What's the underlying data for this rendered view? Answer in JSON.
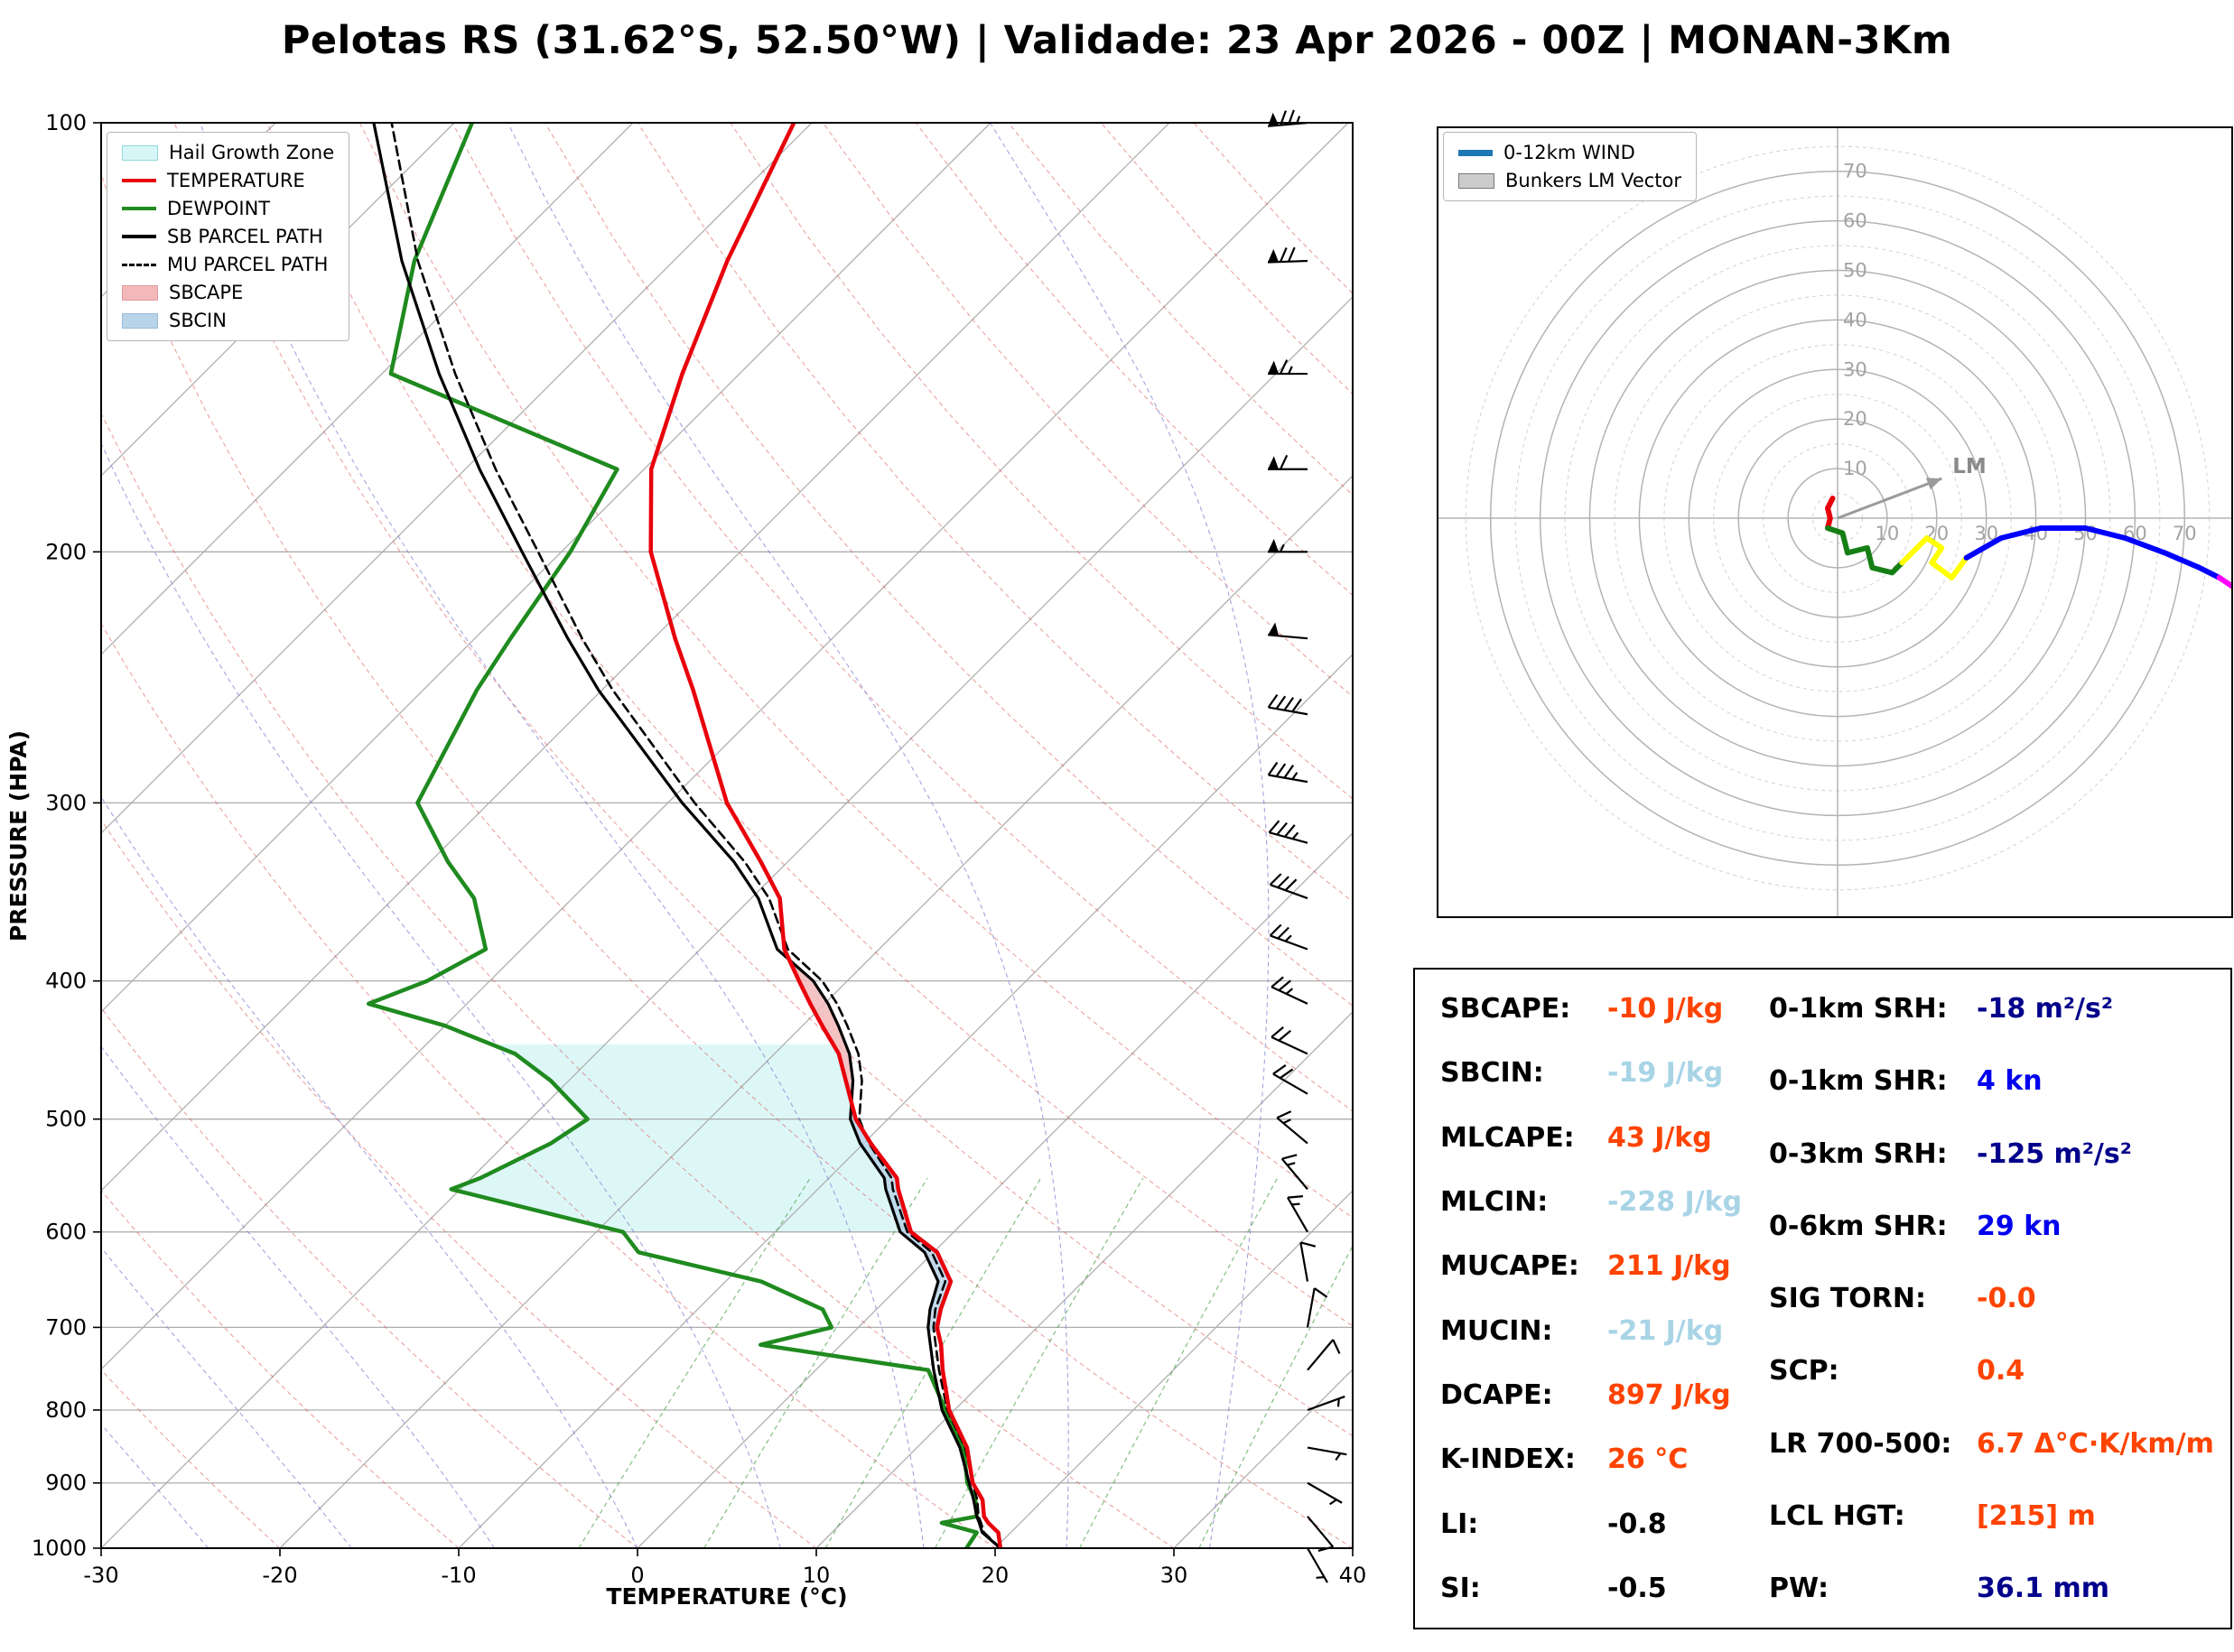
{
  "title": "Pelotas RS (31.62°S, 52.50°W) | Validade: 23 Apr 2026 - 00Z | MONAN-3Km",
  "skewt": {
    "xlabel": "TEMPERATURE (°C)",
    "ylabel": "PRESSURE (HPA)",
    "pressure_ticks": [
      100,
      200,
      300,
      400,
      500,
      600,
      700,
      800,
      900,
      1000
    ],
    "temp_ticks": [
      -30,
      -20,
      -10,
      0,
      10,
      20,
      30,
      40
    ],
    "legend": [
      {
        "label": "Hail Growth Zone",
        "swatch": "fill",
        "color": "#d9f6f6",
        "edge": "#8fd9d9"
      },
      {
        "label": "TEMPERATURE",
        "swatch": "line",
        "color": "#e8000b"
      },
      {
        "label": "DEWPOINT",
        "swatch": "line",
        "color": "#1f8a1f"
      },
      {
        "label": "SB PARCEL PATH",
        "swatch": "line",
        "color": "#000000"
      },
      {
        "label": "MU PARCEL PATH",
        "swatch": "dashed",
        "color": "#000000"
      },
      {
        "label": "SBCAPE",
        "swatch": "fill",
        "color": "#f2b8ba",
        "edge": "#e39a9d"
      },
      {
        "label": "SBCIN",
        "swatch": "fill",
        "color": "#b8d4e8",
        "edge": "#9abcd6"
      }
    ]
  },
  "hodograph_legend": [
    {
      "label": "0-12km WIND",
      "swatch": "line",
      "color": "#1f77b4"
    },
    {
      "label": "Bunkers LM Vector",
      "swatch": "box",
      "color": "#cccccc",
      "edge": "#777777"
    }
  ],
  "lm_label": "LM",
  "stats": {
    "left": [
      {
        "label": "SBCAPE:",
        "value": "-10 J/kg",
        "color": "#ff4300"
      },
      {
        "label": "SBCIN:",
        "value": "-19 J/kg",
        "color": "#a8d4e6"
      },
      {
        "label": "MLCAPE:",
        "value": "43 J/kg",
        "color": "#ff4300"
      },
      {
        "label": "MLCIN:",
        "value": "-228 J/kg",
        "color": "#a8d4e6"
      },
      {
        "label": "MUCAPE:",
        "value": "211 J/kg",
        "color": "#ff4300"
      },
      {
        "label": "MUCIN:",
        "value": "-21 J/kg",
        "color": "#a8d4e6"
      },
      {
        "label": "DCAPE:",
        "value": "897 J/kg",
        "color": "#ff4300"
      },
      {
        "label": "K-INDEX:",
        "value": "26 °C",
        "color": "#ff4300"
      },
      {
        "label": "LI:",
        "value": "-0.8",
        "color": "#000000"
      },
      {
        "label": "SI:",
        "value": "-0.5",
        "color": "#000000"
      }
    ],
    "right": [
      {
        "label": "0-1km SRH:",
        "value": "-18 m²/s²",
        "color": "#00008b"
      },
      {
        "label": "0-1km SHR:",
        "value": "4 kn",
        "color": "#0000ee"
      },
      {
        "label": "0-3km SRH:",
        "value": "-125 m²/s²",
        "color": "#00008b"
      },
      {
        "label": "0-6km SHR:",
        "value": "29 kn",
        "color": "#0000ee"
      },
      {
        "label": "SIG TORN:",
        "value": "-0.0",
        "color": "#ff4300"
      },
      {
        "label": "SCP:",
        "value": "0.4",
        "color": "#ff4300"
      },
      {
        "label": "LR 700-500:",
        "value": "6.7 Δ°C·K/km/m",
        "color": "#ff4300"
      },
      {
        "label": "LCL HGT:",
        "value": "[215] m",
        "color": "#ff4300"
      },
      {
        "label": "PW:",
        "value": "36.1 mm",
        "color": "#00008b"
      }
    ]
  },
  "chart_data": {
    "type": "skewt",
    "pressure_axis_hpa": {
      "min": 100,
      "max": 1000,
      "scale": "log"
    },
    "temp_axis_c": {
      "min": -30,
      "max": 40
    },
    "profile": {
      "pressure_hpa": [
        1000,
        975,
        960,
        950,
        925,
        900,
        850,
        800,
        750,
        720,
        700,
        680,
        650,
        620,
        600,
        560,
        550,
        520,
        500,
        470,
        450,
        430,
        415,
        400,
        380,
        350,
        330,
        300,
        250,
        230,
        200,
        175,
        150,
        125,
        100
      ],
      "temperature_c": [
        20.3,
        19.3,
        18.2,
        17.6,
        16.6,
        15.1,
        12.8,
        9.7,
        7.1,
        5.6,
        4.4,
        3.6,
        2.6,
        0.2,
        -2.4,
        -5.5,
        -6.2,
        -9.6,
        -11.8,
        -14.5,
        -16.4,
        -18.9,
        -20.8,
        -22.7,
        -25.3,
        -28.4,
        -31.5,
        -36.7,
        -44.9,
        -48.8,
        -55.0,
        -59.6,
        -63.2,
        -67.0,
        -71.0
      ],
      "dewpoint_c": [
        18.4,
        18.1,
        15.6,
        17.2,
        16.2,
        14.8,
        12.6,
        9.5,
        6.3,
        -4.5,
        -1.5,
        -3.0,
        -8.0,
        -16.5,
        -18.5,
        -30.5,
        -29.5,
        -27.5,
        -26.8,
        -31.0,
        -34.5,
        -40.0,
        -45.5,
        -43.5,
        -42.0,
        -45.5,
        -49.0,
        -54.0,
        -57.0,
        -58.0,
        -59.5,
        -61.5,
        -79.5,
        -84.5,
        -89.0
      ],
      "sb_parcel_c": [
        20.3,
        18.4,
        17.7,
        17.2,
        16.1,
        14.9,
        12.4,
        9.3,
        6.6,
        5.0,
        3.9,
        3.0,
        1.9,
        -0.5,
        -3.0,
        -6.2,
        -6.9,
        -10.2,
        -12.1,
        -14.1,
        -15.8,
        -18.0,
        -19.8,
        -21.9,
        -25.7,
        -29.6,
        -33.0,
        -39.2,
        -50.2,
        -54.8,
        -62.2,
        -69.2,
        -76.8,
        -85.2,
        -94.5
      ],
      "mu_parcel_c": [
        20.3,
        18.5,
        17.8,
        17.3,
        16.3,
        15.1,
        12.7,
        9.6,
        6.9,
        5.3,
        4.2,
        3.3,
        2.3,
        -0.1,
        -2.6,
        -5.8,
        -6.5,
        -9.7,
        -11.6,
        -13.6,
        -15.3,
        -17.5,
        -19.3,
        -21.4,
        -25.1,
        -29.0,
        -32.4,
        -38.5,
        -49.4,
        -54.0,
        -61.3,
        -68.3,
        -75.9,
        -84.3,
        -93.5
      ]
    },
    "shading": {
      "hail_zone_p": [
        600,
        443
      ],
      "sbcin_p": [
        705,
        490
      ],
      "sbcape_p": [
        490,
        390
      ]
    },
    "wind_barbs": [
      {
        "p": 1000,
        "dir": 150,
        "kn": 7
      },
      {
        "p": 950,
        "dir": 140,
        "kn": 8
      },
      {
        "p": 900,
        "dir": 120,
        "kn": 7
      },
      {
        "p": 850,
        "dir": 100,
        "kn": 6
      },
      {
        "p": 800,
        "dir": 70,
        "kn": 6
      },
      {
        "p": 750,
        "dir": 40,
        "kn": 8
      },
      {
        "p": 700,
        "dir": 10,
        "kn": 9
      },
      {
        "p": 650,
        "dir": 350,
        "kn": 11
      },
      {
        "p": 600,
        "dir": 330,
        "kn": 13
      },
      {
        "p": 560,
        "dir": 320,
        "kn": 15
      },
      {
        "p": 520,
        "dir": 310,
        "kn": 17
      },
      {
        "p": 480,
        "dir": 300,
        "kn": 19
      },
      {
        "p": 450,
        "dir": 295,
        "kn": 22
      },
      {
        "p": 415,
        "dir": 295,
        "kn": 25
      },
      {
        "p": 380,
        "dir": 290,
        "kn": 27
      },
      {
        "p": 350,
        "dir": 290,
        "kn": 30
      },
      {
        "p": 320,
        "dir": 285,
        "kn": 33
      },
      {
        "p": 290,
        "dir": 280,
        "kn": 37
      },
      {
        "p": 260,
        "dir": 280,
        "kn": 42
      },
      {
        "p": 230,
        "dir": 275,
        "kn": 48
      },
      {
        "p": 200,
        "dir": 270,
        "kn": 55
      },
      {
        "p": 175,
        "dir": 270,
        "kn": 60
      },
      {
        "p": 150,
        "dir": 270,
        "kn": 65
      },
      {
        "p": 125,
        "dir": 268,
        "kn": 70
      },
      {
        "p": 100,
        "dir": 265,
        "kn": 74
      }
    ],
    "hodograph": {
      "rings_kn": [
        10,
        20,
        30,
        40,
        50,
        60,
        70
      ],
      "trace_segments": [
        {
          "color": "#e8000b",
          "points": [
            [
              -1,
              4
            ],
            [
              -2,
              2
            ],
            [
              -1.5,
              0
            ],
            [
              -2,
              -2
            ]
          ]
        },
        {
          "color": "#157f15",
          "points": [
            [
              -2,
              -2
            ],
            [
              1,
              -3
            ],
            [
              2,
              -7
            ],
            [
              6,
              -6
            ],
            [
              7,
              -10
            ],
            [
              11,
              -11
            ],
            [
              13,
              -9
            ]
          ]
        },
        {
          "color": "#ffff00",
          "points": [
            [
              13,
              -9
            ],
            [
              18,
              -4
            ],
            [
              21,
              -6
            ],
            [
              19,
              -9
            ],
            [
              23,
              -12
            ],
            [
              26,
              -8
            ]
          ]
        },
        {
          "color": "#0000ff",
          "points": [
            [
              26,
              -8
            ],
            [
              33,
              -4
            ],
            [
              41,
              -2
            ],
            [
              50,
              -2
            ],
            [
              58,
              -4
            ],
            [
              66,
              -7
            ],
            [
              73,
              -10
            ],
            [
              77,
              -12
            ]
          ]
        },
        {
          "color": "#ff00ff",
          "points": [
            [
              77,
              -12
            ],
            [
              80,
              -14
            ]
          ]
        }
      ],
      "lm_vector_kn": [
        21,
        8
      ]
    }
  }
}
